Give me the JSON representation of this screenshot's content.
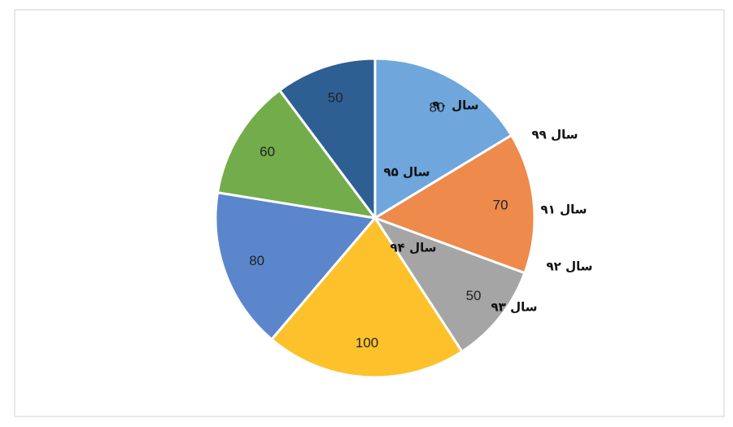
{
  "chart_data": {
    "type": "pie",
    "categories": [
      "سال ۹۰",
      "سال ۹۱",
      "سال ۹۲",
      "سال ۹۳",
      "سال ۹۴",
      "سال ۹۵",
      "سال ۹۹"
    ],
    "values": [
      80,
      70,
      50,
      100,
      80,
      60,
      50
    ],
    "colors": [
      "#6fa6dc",
      "#ed8a4c",
      "#a5a5a5",
      "#fdc22b",
      "#5b86cc",
      "#73ad4b",
      "#2e5f92"
    ]
  }
}
